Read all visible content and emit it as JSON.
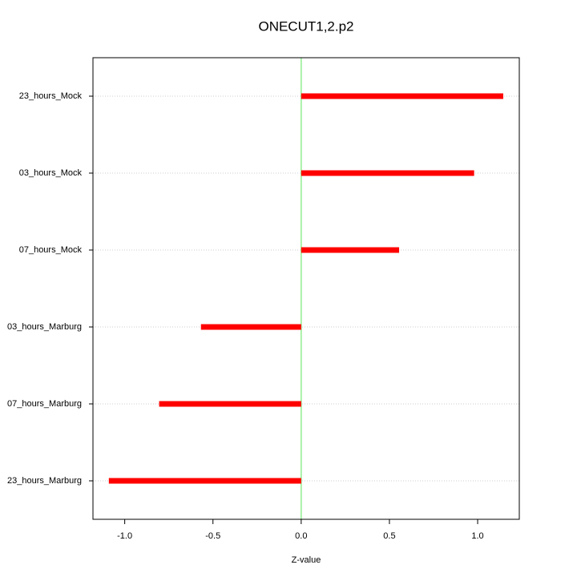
{
  "chart_data": {
    "type": "hbar",
    "title": "ONECUT1,2.p2",
    "x_label": "Z-value",
    "categories": [
      "23_hours_Mock",
      "03_hours_Mock",
      "07_hours_Mock",
      "03_hours_Marburg",
      "07_hours_Marburg",
      "23_hours_Marburg"
    ],
    "values": [
      1.145,
      0.98,
      0.555,
      -0.568,
      -0.805,
      -1.09
    ],
    "color": "#ff0000",
    "zero_line_color": "#90ee90",
    "xlim": [
      -1.18,
      1.236
    ],
    "xticks": [
      {
        "value": -1,
        "label": "-1.0"
      },
      -0.5,
      {
        "value": 0,
        "label": "0.0"
      },
      0.5,
      {
        "value": 1,
        "label": "1.0"
      }
    ],
    "grid": true
  }
}
